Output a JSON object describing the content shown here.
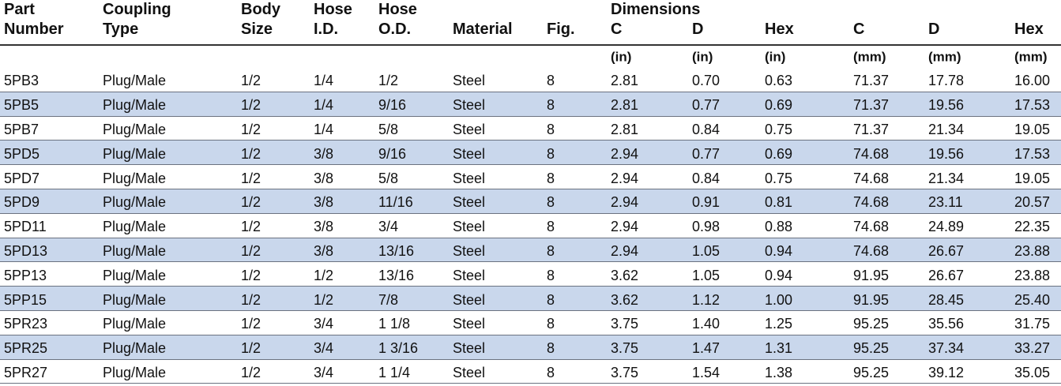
{
  "table": {
    "group": "Dimensions",
    "columns": [
      {
        "lines": [
          "Part",
          "Number"
        ]
      },
      {
        "lines": [
          "Coupling",
          "Type"
        ]
      },
      {
        "lines": [
          "Body",
          "Size"
        ]
      },
      {
        "lines": [
          "Hose",
          "I.D."
        ]
      },
      {
        "lines": [
          "Hose",
          "O.D."
        ]
      },
      {
        "lines": [
          "Material"
        ]
      },
      {
        "lines": [
          "Fig."
        ]
      },
      {
        "lines": [
          "C"
        ]
      },
      {
        "lines": [
          "D"
        ]
      },
      {
        "lines": [
          "Hex"
        ]
      },
      {
        "lines": [
          "C"
        ]
      },
      {
        "lines": [
          "D"
        ]
      },
      {
        "lines": [
          "Hex"
        ]
      }
    ],
    "units": [
      "(in)",
      "(in)",
      "(in)",
      "(mm)",
      "(mm)",
      "(mm)"
    ],
    "rows": [
      [
        "5PB3",
        "Plug/Male",
        "1/2",
        "1/4",
        "1/2",
        "Steel",
        "8",
        "2.81",
        "0.70",
        "0.63",
        "71.37",
        "17.78",
        "16.00"
      ],
      [
        "5PB5",
        "Plug/Male",
        "1/2",
        "1/4",
        "9/16",
        "Steel",
        "8",
        "2.81",
        "0.77",
        "0.69",
        "71.37",
        "19.56",
        "17.53"
      ],
      [
        "5PB7",
        "Plug/Male",
        "1/2",
        "1/4",
        "5/8",
        "Steel",
        "8",
        "2.81",
        "0.84",
        "0.75",
        "71.37",
        "21.34",
        "19.05"
      ],
      [
        "5PD5",
        "Plug/Male",
        "1/2",
        "3/8",
        "9/16",
        "Steel",
        "8",
        "2.94",
        "0.77",
        "0.69",
        "74.68",
        "19.56",
        "17.53"
      ],
      [
        "5PD7",
        "Plug/Male",
        "1/2",
        "3/8",
        "5/8",
        "Steel",
        "8",
        "2.94",
        "0.84",
        "0.75",
        "74.68",
        "21.34",
        "19.05"
      ],
      [
        "5PD9",
        "Plug/Male",
        "1/2",
        "3/8",
        "11/16",
        "Steel",
        "8",
        "2.94",
        "0.91",
        "0.81",
        "74.68",
        "23.11",
        "20.57"
      ],
      [
        "5PD11",
        "Plug/Male",
        "1/2",
        "3/8",
        "3/4",
        "Steel",
        "8",
        "2.94",
        "0.98",
        "0.88",
        "74.68",
        "24.89",
        "22.35"
      ],
      [
        "5PD13",
        "Plug/Male",
        "1/2",
        "3/8",
        "13/16",
        "Steel",
        "8",
        "2.94",
        "1.05",
        "0.94",
        "74.68",
        "26.67",
        "23.88"
      ],
      [
        "5PP13",
        "Plug/Male",
        "1/2",
        "1/2",
        "13/16",
        "Steel",
        "8",
        "3.62",
        "1.05",
        "0.94",
        "91.95",
        "26.67",
        "23.88"
      ],
      [
        "5PP15",
        "Plug/Male",
        "1/2",
        "1/2",
        "7/8",
        "Steel",
        "8",
        "3.62",
        "1.12",
        "1.00",
        "91.95",
        "28.45",
        "25.40"
      ],
      [
        "5PR23",
        "Plug/Male",
        "1/2",
        "3/4",
        "1 1/8",
        "Steel",
        "8",
        "3.75",
        "1.40",
        "1.25",
        "95.25",
        "35.56",
        "31.75"
      ],
      [
        "5PR25",
        "Plug/Male",
        "1/2",
        "3/4",
        "1 3/16",
        "Steel",
        "8",
        "3.75",
        "1.47",
        "1.31",
        "95.25",
        "37.34",
        "33.27"
      ],
      [
        "5PR27",
        "Plug/Male",
        "1/2",
        "3/4",
        "1 1/4",
        "Steel",
        "8",
        "3.75",
        "1.54",
        "1.38",
        "95.25",
        "39.12",
        "35.05"
      ]
    ]
  }
}
